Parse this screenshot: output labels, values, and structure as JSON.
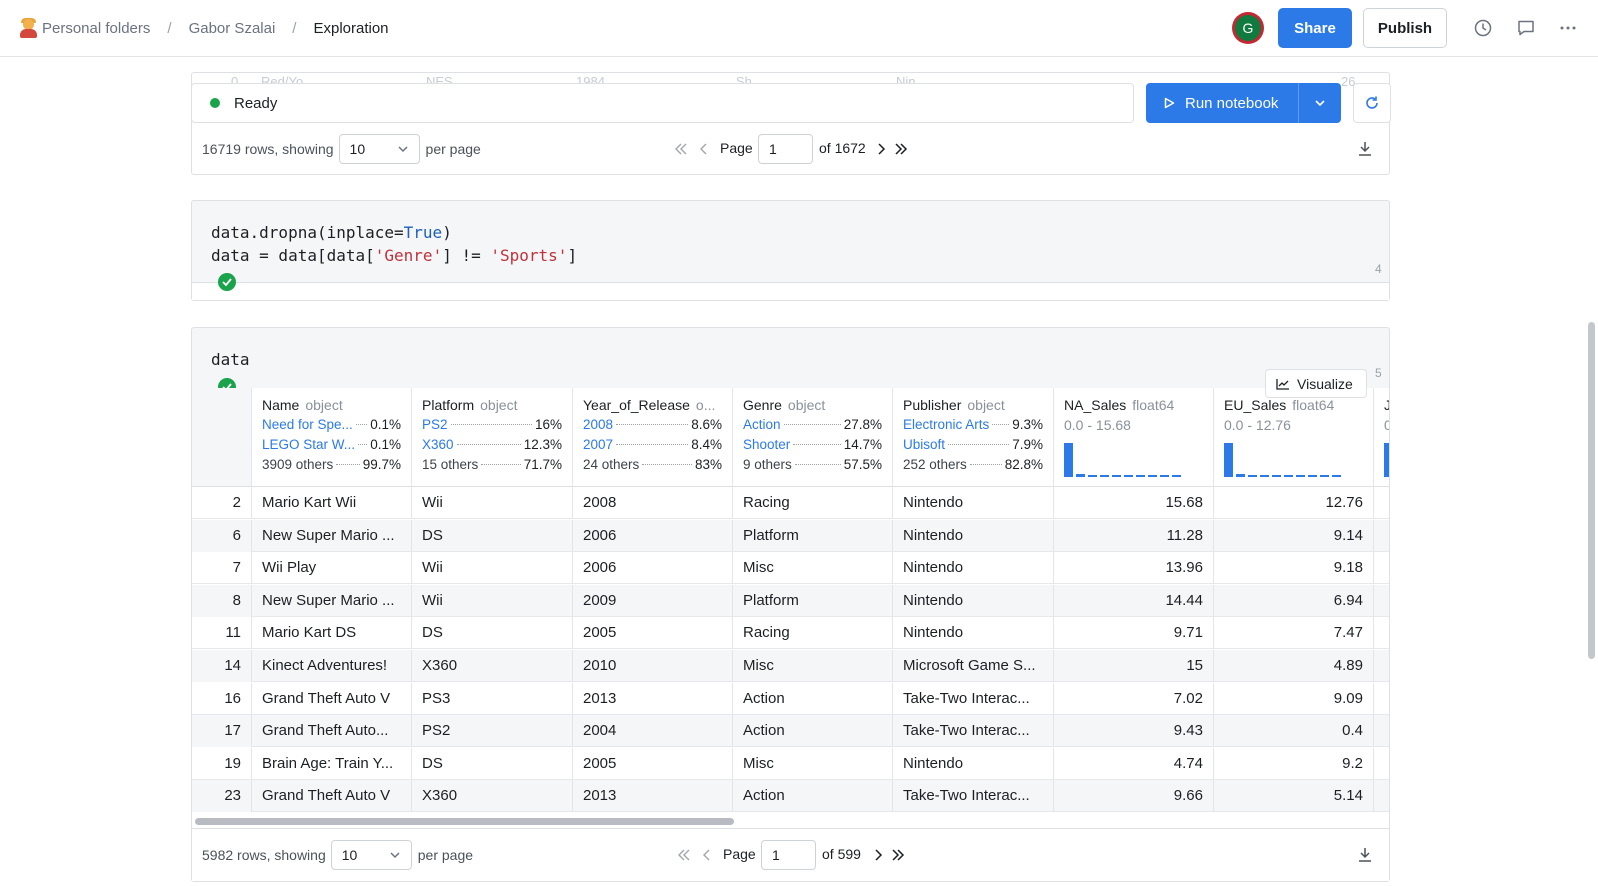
{
  "breadcrumb": {
    "items": [
      "Personal folders",
      "Gabor Szalai",
      "Exploration"
    ]
  },
  "header": {
    "avatar_initial": "G",
    "share_label": "Share",
    "publish_label": "Publish"
  },
  "ghost_row": [
    "0",
    "Red/Yo...",
    "NES",
    "1984",
    "Sh...",
    "Nin...",
    "26"
  ],
  "status": {
    "text": "Ready",
    "run_label": "Run notebook"
  },
  "pager1": {
    "rows_text": "16719 rows, showing",
    "per_page": "10",
    "per_page_label": "per page",
    "page_label": "Page",
    "page": "1",
    "of_text": "of 1672"
  },
  "cell4": {
    "line1_a": "data.dropna(inplace=",
    "line1_kw": "True",
    "line1_b": ")",
    "line2_a": "data = data[data[",
    "line2_s1": "'Genre'",
    "line2_b": "] != ",
    "line2_s2": "'Sports'",
    "line2_c": "]",
    "line_no": "4"
  },
  "cell5": {
    "code": "data",
    "line_no": "5",
    "visualize_label": "Visualize"
  },
  "columns": [
    {
      "name": "Name",
      "type": "object",
      "stats": [
        [
          "Need for Spe...",
          "0.1%"
        ],
        [
          "LEGO Star W...",
          "0.1%"
        ],
        [
          "3909 others",
          "99.7%"
        ]
      ]
    },
    {
      "name": "Platform",
      "type": "object",
      "stats": [
        [
          "PS2",
          "16%"
        ],
        [
          "X360",
          "12.3%"
        ],
        [
          "15 others",
          "71.7%"
        ]
      ]
    },
    {
      "name": "Year_of_Release",
      "type": "o...",
      "stats": [
        [
          "2008",
          "8.6%"
        ],
        [
          "2007",
          "8.4%"
        ],
        [
          "24 others",
          "83%"
        ]
      ]
    },
    {
      "name": "Genre",
      "type": "object",
      "stats": [
        [
          "Action",
          "27.8%"
        ],
        [
          "Shooter",
          "14.7%"
        ],
        [
          "9 others",
          "57.5%"
        ]
      ]
    },
    {
      "name": "Publisher",
      "type": "object",
      "stats": [
        [
          "Electronic Arts",
          "9.3%"
        ],
        [
          "Ubisoft",
          "7.9%"
        ],
        [
          "252 others",
          "82.8%"
        ]
      ]
    },
    {
      "name": "NA_Sales",
      "type": "float64",
      "range": "0.0 - 15.68"
    },
    {
      "name": "EU_Sales",
      "type": "float64",
      "range": "0.0 - 12.76"
    },
    {
      "name": "J",
      "type": "",
      "range": "0"
    }
  ],
  "histograms": {
    "na_sales": [
      0.95,
      0.08,
      0.04,
      0.03,
      0.02,
      0.02,
      0.02,
      0.02,
      0.02,
      0.02
    ],
    "eu_sales": [
      0.95,
      0.07,
      0.03,
      0.02,
      0.02,
      0.02,
      0.02,
      0.02,
      0.02,
      0.02
    ],
    "jp_sales": [
      0.95
    ]
  },
  "rows": [
    [
      "2",
      "Mario Kart Wii",
      "Wii",
      "2008",
      "Racing",
      "Nintendo",
      "15.68",
      "12.76"
    ],
    [
      "6",
      "New Super Mario ...",
      "DS",
      "2006",
      "Platform",
      "Nintendo",
      "11.28",
      "9.14"
    ],
    [
      "7",
      "Wii Play",
      "Wii",
      "2006",
      "Misc",
      "Nintendo",
      "13.96",
      "9.18"
    ],
    [
      "8",
      "New Super Mario ...",
      "Wii",
      "2009",
      "Platform",
      "Nintendo",
      "14.44",
      "6.94"
    ],
    [
      "11",
      "Mario Kart DS",
      "DS",
      "2005",
      "Racing",
      "Nintendo",
      "9.71",
      "7.47"
    ],
    [
      "14",
      "Kinect Adventures!",
      "X360",
      "2010",
      "Misc",
      "Microsoft Game S...",
      "15",
      "4.89"
    ],
    [
      "16",
      "Grand Theft Auto V",
      "PS3",
      "2013",
      "Action",
      "Take-Two Interac...",
      "7.02",
      "9.09"
    ],
    [
      "17",
      "Grand Theft Auto...",
      "PS2",
      "2004",
      "Action",
      "Take-Two Interac...",
      "9.43",
      "0.4"
    ],
    [
      "19",
      "Brain Age: Train Y...",
      "DS",
      "2005",
      "Misc",
      "Nintendo",
      "4.74",
      "9.2"
    ],
    [
      "23",
      "Grand Theft Auto V",
      "X360",
      "2013",
      "Action",
      "Take-Two Interac...",
      "9.66",
      "5.14"
    ]
  ],
  "pager2": {
    "rows_text": "5982 rows, showing",
    "per_page": "10",
    "per_page_label": "per page",
    "page_label": "Page",
    "page": "1",
    "of_text": "of 599"
  },
  "colors": {
    "accent": "#2c7ae8",
    "success": "#1aa34a",
    "avatar_ring": "#c52833",
    "avatar_fill": "#117a3e"
  }
}
